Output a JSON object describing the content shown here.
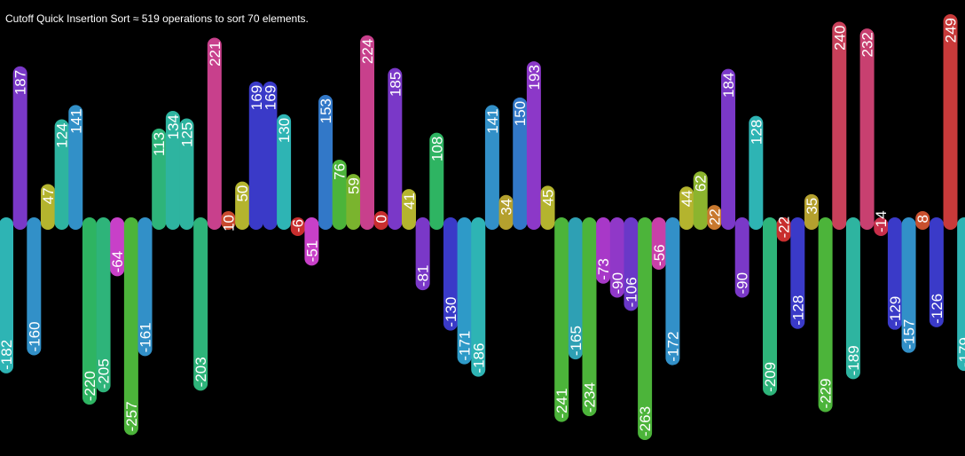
{
  "title": "Cutoff Quick Insertion Sort ≈ 519 operations to sort 70 elements.",
  "chart_data": {
    "type": "bar",
    "title": "Cutoff Quick Insertion Sort ≈ 519 operations to sort 70 elements.",
    "xlabel": "",
    "ylabel": "",
    "ylim": [
      -263,
      249
    ],
    "grid": false,
    "legend": "none",
    "background": "#000000",
    "values": [
      -182,
      187,
      -160,
      47,
      124,
      141,
      -220,
      -205,
      -64,
      -257,
      -161,
      113,
      134,
      125,
      -203,
      221,
      10,
      50,
      169,
      169,
      130,
      -6,
      -51,
      153,
      76,
      59,
      224,
      0,
      185,
      41,
      -81,
      108,
      -130,
      -171,
      -186,
      141,
      34,
      150,
      193,
      45,
      -241,
      -165,
      -234,
      -73,
      -90,
      -106,
      -263,
      -56,
      -172,
      44,
      62,
      22,
      184,
      -90,
      128,
      -209,
      -22,
      -128,
      35,
      -229,
      240,
      -189,
      232,
      -14,
      -129,
      -157,
      8,
      -126,
      249,
      -179
    ],
    "colors": [
      "#2eb4b4",
      "#7a38c8",
      "#3290c8",
      "#b4b42e",
      "#2eb4a0",
      "#3290c8",
      "#2eb462",
      "#2eb47a",
      "#c840c8",
      "#4cb43a",
      "#3290c8",
      "#2eb47a",
      "#2eb4a0",
      "#2eb4a0",
      "#2eb47a",
      "#c8408c",
      "#c84a2e",
      "#b4b42e",
      "#3a3ac8",
      "#3a3ac8",
      "#2eb4b4",
      "#c82e2e",
      "#c840c8",
      "#3278c8",
      "#4cb43a",
      "#7ab42e",
      "#c8408c",
      "#c82e2e",
      "#7a38c8",
      "#b4b42e",
      "#7a38c8",
      "#2eb462",
      "#3a3ac8",
      "#2e9ac8",
      "#2eb4b4",
      "#3290c8",
      "#b4a02e",
      "#3278c8",
      "#8c38c8",
      "#b4b42e",
      "#4cb43a",
      "#2ea0b4",
      "#4cb43a",
      "#a838c8",
      "#9038c8",
      "#6a38c8",
      "#4cb43a",
      "#c840a8",
      "#3290c8",
      "#b4b42e",
      "#8cb42e",
      "#c8782e",
      "#7a38c8",
      "#7a38c8",
      "#2eb4b4",
      "#2eb47a",
      "#c82e2e",
      "#3a3ac8",
      "#b4a02e",
      "#4cb43a",
      "#c8405a",
      "#2eb4a0",
      "#c84070",
      "#c82e4a",
      "#3a3ac8",
      "#3290c8",
      "#c8502e",
      "#3a3ac8",
      "#c83a3a",
      "#2eb4b4"
    ]
  }
}
